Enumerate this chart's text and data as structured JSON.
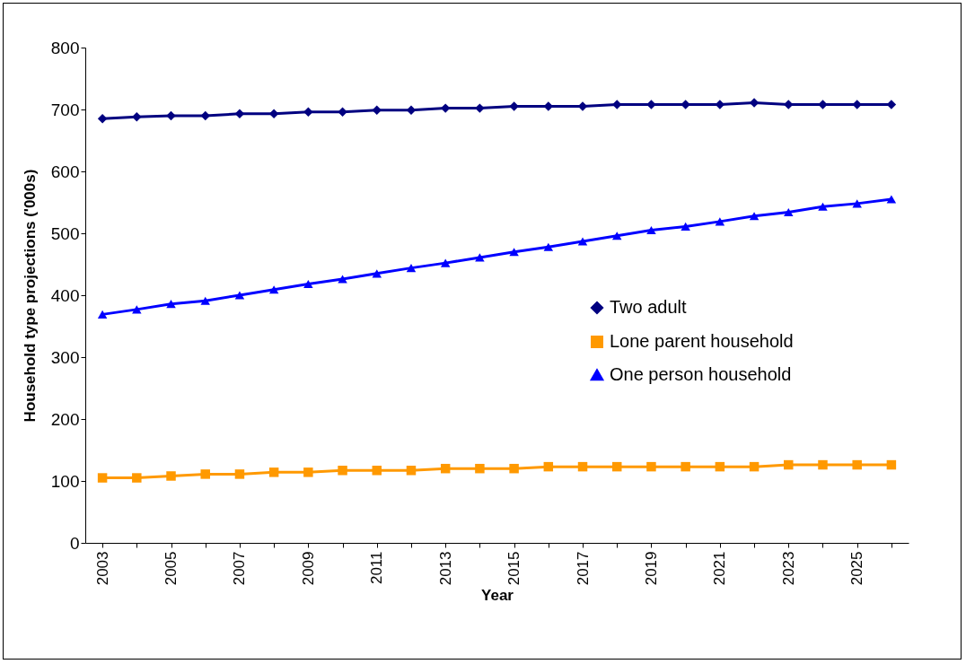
{
  "chart_data": {
    "type": "line",
    "xlabel": "Year",
    "ylabel": "Household type projections ('000s)",
    "categories": [
      "2003",
      null,
      "2005",
      null,
      "2007",
      null,
      "2009",
      null,
      "2011",
      null,
      "2013",
      null,
      "2015",
      null,
      "2017",
      null,
      "2019",
      null,
      "2021",
      null,
      "2023",
      null,
      "2025",
      null
    ],
    "series": [
      {
        "name": "Two adult",
        "color": "#000080",
        "marker": "diamond",
        "values": [
          685,
          688,
          690,
          690,
          693,
          693,
          696,
          696,
          699,
          699,
          702,
          702,
          705,
          705,
          705,
          708,
          708,
          708,
          708,
          711,
          708,
          708,
          708,
          708
        ]
      },
      {
        "name": "Lone parent household",
        "color": "#ff9900",
        "marker": "square",
        "values": [
          105,
          105,
          108,
          111,
          111,
          114,
          114,
          117,
          117,
          117,
          120,
          120,
          120,
          123,
          123,
          123,
          123,
          123,
          123,
          123,
          126,
          126,
          126,
          126
        ]
      },
      {
        "name": "One person household",
        "color": "#0000ff",
        "marker": "triangle",
        "values": [
          369,
          377,
          386,
          391,
          400,
          409,
          418,
          426,
          435,
          444,
          452,
          461,
          470,
          478,
          487,
          496,
          505,
          511,
          519,
          528,
          534,
          543,
          548,
          555
        ]
      }
    ],
    "ylim": [
      0,
      800
    ],
    "yticks": [
      0,
      100,
      200,
      300,
      400,
      500,
      600,
      700,
      800
    ],
    "grid": false,
    "legend": "right",
    "line_style": "solid"
  }
}
